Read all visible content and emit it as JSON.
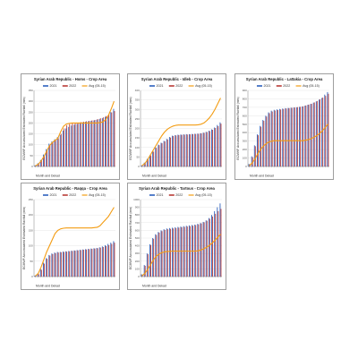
{
  "colors": {
    "y2021": "#4472c4",
    "y2022": "#c0504d",
    "avg": "#f39c12",
    "grid": "#dcdcdc",
    "axis": "#808080"
  },
  "legend": [
    "2021",
    "2022",
    "Avg (05-15)"
  ],
  "xlabel": "Month and Dekad",
  "ylabel": "ECMWF Accumulated Estimated Rainfall (mm)",
  "chart_data": [
    {
      "type": "bar",
      "title": "Syrian Arab Republic - Homs - Crop Area",
      "ylim": [
        0,
        350
      ],
      "yticks": [
        0,
        50,
        100,
        150,
        200,
        250,
        300,
        350
      ],
      "series": [
        {
          "name": "2021",
          "values": [
            5,
            15,
            30,
            55,
            80,
            105,
            115,
            125,
            135,
            145,
            165,
            175,
            182,
            188,
            192,
            196,
            200,
            203,
            206,
            208,
            210,
            212,
            215,
            218,
            222,
            228,
            235,
            250,
            265
          ]
        },
        {
          "name": "2022",
          "values": [
            3,
            12,
            28,
            50,
            75,
            100,
            110,
            120,
            130,
            150,
            175,
            190,
            195,
            198,
            200,
            202,
            204,
            206,
            208,
            210,
            212,
            214,
            218,
            222,
            226,
            232,
            240,
            248,
            255
          ]
        },
        {
          "name": "Avg (05-15)",
          "values": [
            3,
            10,
            25,
            45,
            70,
            95,
            110,
            120,
            130,
            160,
            185,
            195,
            198,
            200,
            200,
            200,
            200,
            200,
            200,
            200,
            200,
            200,
            200,
            202,
            205,
            215,
            235,
            265,
            300
          ]
        }
      ]
    },
    {
      "type": "bar",
      "title": "Syrian Arab Republic - Idleb - Crop Area",
      "ylim": [
        0,
        400
      ],
      "yticks": [
        0,
        50,
        100,
        150,
        200,
        250,
        300,
        350,
        400
      ],
      "series": [
        {
          "name": "2021",
          "values": [
            5,
            20,
            40,
            60,
            80,
            100,
            115,
            125,
            135,
            145,
            155,
            162,
            165,
            167,
            168,
            169,
            170,
            170,
            171,
            172,
            173,
            175,
            178,
            182,
            188,
            195,
            205,
            218,
            232
          ]
        },
        {
          "name": "2022",
          "values": [
            4,
            18,
            38,
            58,
            78,
            98,
            112,
            122,
            132,
            142,
            152,
            160,
            163,
            165,
            166,
            167,
            168,
            169,
            170,
            171,
            172,
            174,
            177,
            181,
            186,
            193,
            202,
            212,
            225
          ]
        },
        {
          "name": "Avg (05-15)",
          "values": [
            5,
            15,
            35,
            60,
            85,
            110,
            135,
            160,
            180,
            195,
            205,
            212,
            216,
            218,
            218,
            218,
            218,
            218,
            218,
            218,
            219,
            222,
            228,
            240,
            255,
            275,
            300,
            330,
            360
          ]
        }
      ]
    },
    {
      "type": "bar",
      "title": "Syrian Arab Republic - Lattakia - Crop Area",
      "ylim": [
        0,
        900
      ],
      "yticks": [
        0,
        100,
        200,
        300,
        400,
        500,
        600,
        700,
        800,
        900
      ],
      "series": [
        {
          "name": "2021",
          "values": [
            30,
            120,
            250,
            380,
            480,
            550,
            600,
            640,
            660,
            670,
            675,
            680,
            685,
            690,
            692,
            695,
            698,
            700,
            705,
            710,
            720,
            730,
            740,
            755,
            770,
            790,
            810,
            850,
            880
          ]
        },
        {
          "name": "2022",
          "values": [
            25,
            110,
            240,
            370,
            470,
            540,
            590,
            630,
            650,
            662,
            668,
            674,
            680,
            686,
            690,
            694,
            698,
            702,
            706,
            712,
            722,
            732,
            742,
            758,
            775,
            795,
            815,
            835,
            860
          ]
        },
        {
          "name": "Avg (05-15)",
          "values": [
            10,
            40,
            90,
            150,
            200,
            240,
            270,
            290,
            300,
            305,
            305,
            305,
            305,
            305,
            305,
            305,
            305,
            305,
            305,
            305,
            310,
            318,
            330,
            345,
            365,
            390,
            420,
            460,
            500
          ]
        }
      ]
    },
    {
      "type": "bar",
      "title": "Syrian Arab Republic - Raqqa - Crop Area",
      "ylim": [
        0,
        250
      ],
      "yticks": [
        0,
        50,
        100,
        150,
        200,
        250
      ],
      "series": [
        {
          "name": "2021",
          "values": [
            3,
            10,
            25,
            45,
            60,
            70,
            75,
            78,
            80,
            80,
            81,
            82,
            83,
            84,
            85,
            86,
            87,
            88,
            89,
            90,
            91,
            92,
            93,
            95,
            98,
            102,
            106,
            110,
            115
          ]
        },
        {
          "name": "2022",
          "values": [
            2,
            8,
            22,
            42,
            58,
            68,
            73,
            76,
            78,
            79,
            80,
            81,
            82,
            83,
            84,
            85,
            86,
            87,
            88,
            89,
            90,
            91,
            92,
            94,
            96,
            99,
            102,
            106,
            110
          ]
        },
        {
          "name": "Avg (05-15)",
          "values": [
            2,
            10,
            30,
            55,
            80,
            100,
            120,
            140,
            150,
            155,
            157,
            158,
            158,
            158,
            158,
            158,
            158,
            158,
            158,
            158,
            158,
            159,
            160,
            165,
            175,
            185,
            195,
            210,
            225
          ]
        }
      ]
    },
    {
      "type": "bar",
      "title": "Syrian Arab Republic - Tartous - Crop Area",
      "ylim": [
        0,
        1000
      ],
      "yticks": [
        0,
        100,
        200,
        300,
        400,
        500,
        600,
        700,
        800,
        900,
        1000
      ],
      "series": [
        {
          "name": "2021",
          "values": [
            30,
            150,
            300,
            420,
            500,
            550,
            580,
            600,
            615,
            625,
            630,
            635,
            640,
            645,
            650,
            655,
            660,
            665,
            670,
            675,
            685,
            695,
            710,
            730,
            760,
            800,
            850,
            900,
            950
          ]
        },
        {
          "name": "2022",
          "values": [
            25,
            140,
            290,
            410,
            490,
            540,
            570,
            590,
            605,
            615,
            620,
            625,
            630,
            635,
            640,
            645,
            650,
            655,
            660,
            668,
            678,
            690,
            705,
            725,
            750,
            780,
            815,
            850,
            880
          ]
        },
        {
          "name": "Avg (05-15)",
          "values": [
            10,
            40,
            90,
            150,
            210,
            260,
            290,
            310,
            320,
            325,
            328,
            330,
            330,
            330,
            330,
            330,
            330,
            330,
            330,
            330,
            335,
            345,
            360,
            380,
            405,
            435,
            470,
            510,
            550
          ]
        }
      ]
    }
  ]
}
